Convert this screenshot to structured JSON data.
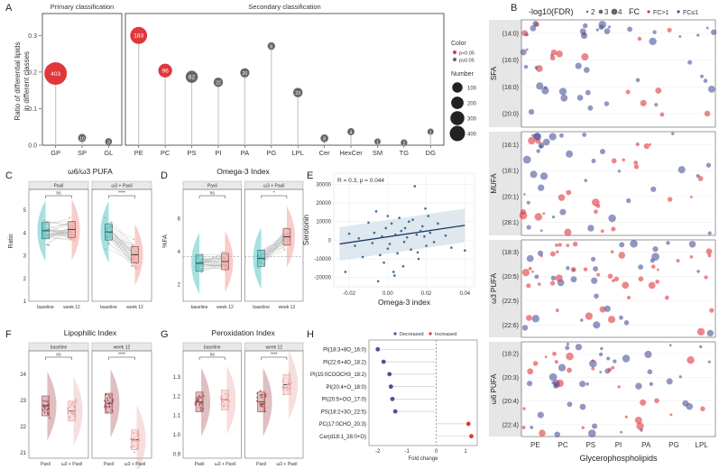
{
  "colors": {
    "increase": "#e0373b",
    "decrease": "#4a5199",
    "stem": "#c8c8c8",
    "gray": "#666666",
    "teal": "#5cc6c6",
    "salmon": "#f3a39a",
    "wine": "#a4484d",
    "rose": "#e8a0a0",
    "line": "#1b3a64",
    "band": "#d6e2ea"
  },
  "panel_labels": [
    "A",
    "B",
    "C",
    "D",
    "E",
    "F",
    "G",
    "H"
  ],
  "chart_data": [
    {
      "id": "A",
      "type": "lollipop",
      "ylabel": "Ratio of differential lipids\nin different classes",
      "yticks": [
        0.0,
        0.1,
        0.2,
        0.3
      ],
      "ylim": [
        0,
        0.36
      ],
      "groups": [
        {
          "title": "Primary classification",
          "categories": [
            "GP",
            "SP",
            "GL"
          ],
          "values": [
            0.196,
            0.02,
            0.01
          ],
          "numbers": [
            403,
            10,
            3
          ],
          "significant": [
            true,
            false,
            false
          ]
        },
        {
          "title": "Secondary classification",
          "categories": [
            "PE",
            "PC",
            "PS",
            "PI",
            "PA",
            "PG",
            "LPL",
            "Cer",
            "HexCer",
            "SM",
            "TG",
            "DG"
          ],
          "values": [
            0.3,
            0.204,
            0.187,
            0.172,
            0.198,
            0.271,
            0.144,
            0.019,
            0.037,
            0.01,
            0.007,
            0.037
          ],
          "numbers": [
            183,
            96,
            62,
            22,
            20,
            6,
            23,
            8,
            4,
            1,
            2,
            1
          ],
          "significant": [
            true,
            true,
            false,
            false,
            false,
            false,
            false,
            false,
            false,
            false,
            false,
            false
          ]
        }
      ],
      "legend": {
        "color_title": "Color",
        "color_items": [
          "p<0.05",
          "p≥0.05"
        ],
        "size_title": "Number",
        "size_items": [
          100,
          200,
          300,
          400
        ]
      }
    },
    {
      "id": "B",
      "type": "scatter-grid",
      "legend": {
        "size_title": "-log10(FDR)",
        "size_items": [
          2,
          3,
          4
        ],
        "color_title": "FC",
        "color_items": [
          "FC>1",
          "FC≤1"
        ]
      },
      "xlabel": "Glycerophospholipids",
      "columns": [
        "PE",
        "PC",
        "PS",
        "PI",
        "PA",
        "PG",
        "LPL"
      ],
      "facets": [
        {
          "name": "SFA",
          "rows": [
            "(14:0)",
            "(16:0)",
            "(18:0)",
            "(20:0)"
          ]
        },
        {
          "name": "MUFA",
          "rows": [
            "(16:1)",
            "(18:1)",
            "(20:1)",
            "(28:1)"
          ]
        },
        {
          "name": "ω3 PUFA",
          "rows": [
            "(18:3)",
            "(20:5)",
            "(22:5)",
            "(22:6)"
          ]
        },
        {
          "name": "ω6 PUFA",
          "rows": [
            "(18:2)",
            "(20:3)",
            "(20:4)",
            "(22:4)"
          ]
        }
      ]
    },
    {
      "id": "C",
      "type": "raincloud-paired",
      "title": "ω6/ω3 PUFA",
      "ylabel": "Ratio",
      "ylim": [
        1,
        5.8
      ],
      "yticks": [
        1,
        2,
        3,
        4,
        5
      ],
      "facets": [
        {
          "label": "Paxil",
          "sig": "ns",
          "baseline_median": 4.1,
          "week12_median": 4.15
        },
        {
          "label": "ω3 + Paxil",
          "sig": "****",
          "baseline_median": 4.05,
          "week12_median": 3.05
        }
      ],
      "categories": [
        "baseline",
        "week 12"
      ]
    },
    {
      "id": "D",
      "type": "raincloud-paired",
      "title": "Omega-3 Index",
      "ylabel": "%FA",
      "ylim": [
        1,
        7.6
      ],
      "yticks": [
        2,
        4,
        6
      ],
      "reference": 3.7,
      "facets": [
        {
          "label": "Paxil",
          "sig": "ns",
          "baseline_median": 3.3,
          "week12_median": 3.4
        },
        {
          "label": "ω3 + Paxil",
          "sig": "*",
          "baseline_median": 3.6,
          "week12_median": 4.9
        }
      ],
      "categories": [
        "baseline",
        "week 12"
      ]
    },
    {
      "id": "E",
      "type": "scatter-regression",
      "annotation": "R = 0.3, p = 0.044",
      "xlabel": "Omega-3 index",
      "ylabel": "Serotonin",
      "xlim": [
        -0.028,
        0.045
      ],
      "ylim": [
        -25000,
        36000
      ],
      "xticks": [
        -0.02,
        0.0,
        0.02,
        0.04
      ],
      "yticks": [
        -20000,
        -10000,
        0,
        10000,
        20000,
        30000
      ],
      "xtick_labels": [
        "-0.02",
        "0.00",
        "0.02",
        "0.04"
      ],
      "ytick_labels": [
        "-20000",
        "-10000",
        "0",
        "10000",
        "20000",
        "30000"
      ],
      "fit": {
        "x": [
          -0.025,
          0.04
        ],
        "y": [
          -2000,
          8000
        ]
      },
      "points": {
        "x": [
          -0.022,
          -0.02,
          -0.017,
          -0.015,
          -0.013,
          -0.01,
          -0.008,
          -0.007,
          -0.005,
          -0.004,
          -0.003,
          -0.002,
          -0.001,
          0.0,
          0.0,
          0.001,
          0.002,
          0.003,
          0.004,
          0.005,
          0.006,
          0.007,
          0.008,
          0.009,
          0.01,
          0.011,
          0.012,
          0.013,
          0.014,
          0.015,
          0.016,
          0.017,
          0.018,
          0.019,
          0.02,
          0.021,
          0.022,
          0.024,
          0.026,
          0.03,
          0.033,
          0.04,
          0.0035,
          0.0085,
          -0.006,
          0.0155,
          0.0195
        ],
        "y": [
          -17000,
          3500,
          -3000,
          1000,
          -9000,
          9500,
          -1500,
          4000,
          -22000,
          -8000,
          2000,
          -12000,
          6500,
          -4500,
          13000,
          -2000,
          9000,
          -17000,
          3000,
          -7000,
          12000,
          5000,
          -14000,
          6500,
          1500,
          10000,
          -5000,
          11000,
          29000,
          3000,
          -10000,
          5000,
          7500,
          2000,
          -3000,
          13000,
          4000,
          -1000,
          9000,
          2500,
          -4000,
          -5500,
          -19000,
          -900,
          15500,
          -6500,
          17000
        ]
      }
    },
    {
      "id": "F",
      "type": "raincloud",
      "title": "Lipophilic Index",
      "ylim": [
        20.8,
        24.8
      ],
      "yticks": [
        21,
        22,
        23,
        24
      ],
      "facets": [
        {
          "label": "baseline",
          "sig": "ns",
          "categories": [
            "Paxil",
            "ω3 + Paxil"
          ],
          "medians": [
            22.8,
            22.6
          ]
        },
        {
          "label": "week 12",
          "sig": "****",
          "categories": [
            "Paxil",
            "ω3 + Paxil"
          ],
          "medians": [
            22.9,
            21.5
          ]
        }
      ]
    },
    {
      "id": "G",
      "type": "raincloud",
      "title": "Peroxidation Index",
      "ylim": [
        0.88,
        1.42
      ],
      "yticks": [
        0.9,
        1.0,
        1.1,
        1.2,
        1.3
      ],
      "ytick_labels": [
        "0.9",
        "1.0",
        "1.1",
        "1.2",
        "1.3"
      ],
      "facets": [
        {
          "label": "baseline",
          "sig": "ns",
          "categories": [
            "Paxil",
            "ω3 + Paxil"
          ],
          "medians": [
            1.17,
            1.18
          ]
        },
        {
          "label": "week 12",
          "sig": "****",
          "categories": [
            "Paxil",
            "ω3 + Paxil"
          ],
          "medians": [
            1.17,
            1.26
          ]
        }
      ]
    },
    {
      "id": "H",
      "type": "dot-plot",
      "xlabel": "Fold change",
      "xlim": [
        -2.3,
        1.4
      ],
      "xticks": [
        -2,
        -1,
        0,
        1
      ],
      "legend": [
        "Decreased",
        "Increased"
      ],
      "lipids": [
        "PI(18:3+8O_16:0)",
        "PI(22:6+4O_18:2)",
        "PI(15:0COOCH3_18:2)",
        "PI(20:4+O_18:0)",
        "PI(20:5+OO_17:0)",
        "PS(18:2+3O_22:5)",
        "PC(17:0CHO_20:3)",
        "Cer(d18:1_28:0+O)"
      ],
      "values": [
        -2.0,
        -1.8,
        -1.6,
        -1.55,
        -1.5,
        -1.4,
        1.1,
        1.2
      ]
    }
  ]
}
